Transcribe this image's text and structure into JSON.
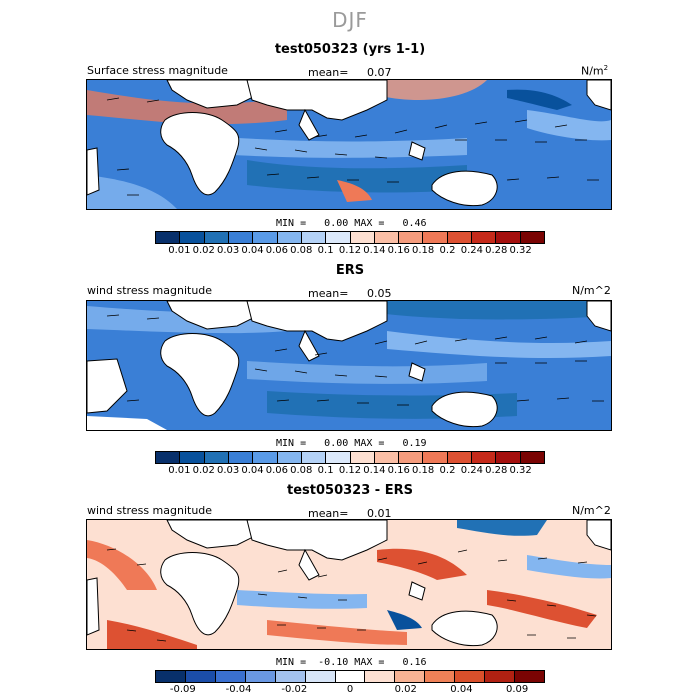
{
  "figure": {
    "title": "DJF"
  },
  "colors": {
    "levels1": [
      "#08306b",
      "#08519c",
      "#2171b5",
      "#3a7fd6",
      "#5a9be8",
      "#84b6f0",
      "#b4d2f7",
      "#dce9fb",
      "#fde0d2",
      "#fbbfa6",
      "#f59c7d",
      "#ef7957",
      "#dd5132",
      "#c62a1a",
      "#a40f0d",
      "#7a0403"
    ],
    "levels3": [
      "#08306b",
      "#1b4da8",
      "#3a70d0",
      "#6a98e3",
      "#a3c2ef",
      "#d7e5f8",
      "#ffffff",
      "#fde0d2",
      "#f7b293",
      "#ef8157",
      "#d9502b",
      "#b12112",
      "#7a0403"
    ],
    "land": "#ffffff",
    "ocean_low": "#2f6fd4",
    "ocean_mid": "#5a9be8",
    "ocean_high": "#ef7957"
  },
  "panels": [
    {
      "title": "test050323 (yrs 1-1)",
      "left_label": "Surface stress magnitude",
      "mean_label": "mean=",
      "mean_value": "0.07",
      "units": "N/m",
      "units_sup": "2",
      "min_label": "MIN =",
      "min_value": "0.00",
      "max_label": "MAX =",
      "max_value": "0.46",
      "colorbar_ticks": [
        "0.01",
        "0.02",
        "0.03",
        "0.04",
        "0.06",
        "0.08",
        "0.1",
        "0.12",
        "0.14",
        "0.16",
        "0.18",
        "0.2",
        "0.24",
        "0.28",
        "0.32"
      ]
    },
    {
      "title": "ERS",
      "left_label": "wind stress magnitude",
      "mean_label": "mean=",
      "mean_value": "0.05",
      "units": "N/m^2",
      "units_sup": "",
      "min_label": "MIN =",
      "min_value": "0.00",
      "max_label": "MAX =",
      "max_value": "0.19",
      "colorbar_ticks": [
        "0.01",
        "0.02",
        "0.03",
        "0.04",
        "0.06",
        "0.08",
        "0.1",
        "0.12",
        "0.14",
        "0.16",
        "0.18",
        "0.2",
        "0.24",
        "0.28",
        "0.32"
      ]
    },
    {
      "title": "test050323 - ERS",
      "left_label": "wind stress magnitude",
      "mean_label": "mean=",
      "mean_value": "0.01",
      "units": "N/m^2",
      "units_sup": "",
      "min_label": "MIN =",
      "min_value": "-0.10",
      "max_label": "MAX =",
      "max_value": "0.16",
      "colorbar_ticks": [
        "-0.09",
        "-0.04",
        "-0.02",
        "0",
        "0.02",
        "0.04",
        "0.09"
      ]
    }
  ]
}
